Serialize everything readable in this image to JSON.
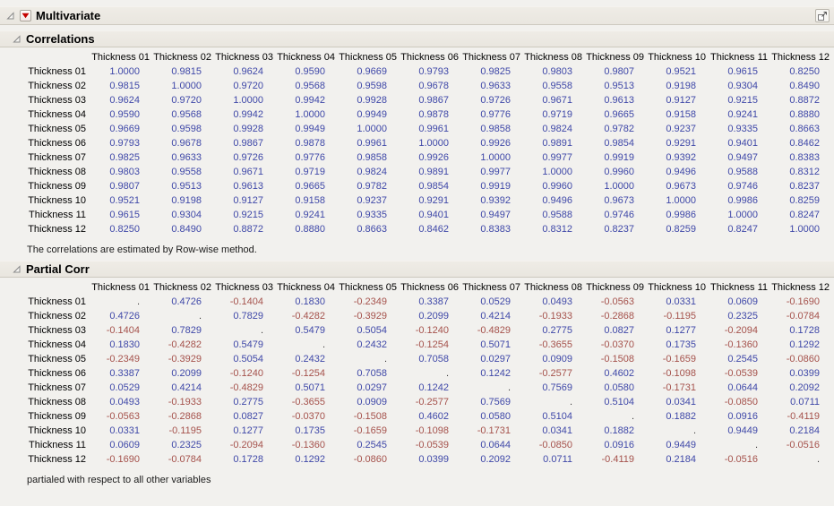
{
  "colors": {
    "positive": "#3f48a8",
    "negative": "#a5524c",
    "missing": "#3a3a3a",
    "red_triangle": "#c40000",
    "bar_bg": "#e9e6df",
    "bar_border": "#cdc9bf",
    "page_bg": "#f2f1ee"
  },
  "multivariate": {
    "title": "Multivariate"
  },
  "correlations": {
    "title": "Correlations",
    "columns": [
      "Thickness 01",
      "Thickness 02",
      "Thickness 03",
      "Thickness 04",
      "Thickness 05",
      "Thickness 06",
      "Thickness 07",
      "Thickness 08",
      "Thickness 09",
      "Thickness 10",
      "Thickness 11",
      "Thickness 12"
    ],
    "row_labels": [
      "Thickness 01",
      "Thickness 02",
      "Thickness 03",
      "Thickness 04",
      "Thickness 05",
      "Thickness 06",
      "Thickness 07",
      "Thickness 08",
      "Thickness 09",
      "Thickness 10",
      "Thickness 11",
      "Thickness 12"
    ],
    "values": [
      [
        "1.0000",
        "0.9815",
        "0.9624",
        "0.9590",
        "0.9669",
        "0.9793",
        "0.9825",
        "0.9803",
        "0.9807",
        "0.9521",
        "0.9615",
        "0.8250"
      ],
      [
        "0.9815",
        "1.0000",
        "0.9720",
        "0.9568",
        "0.9598",
        "0.9678",
        "0.9633",
        "0.9558",
        "0.9513",
        "0.9198",
        "0.9304",
        "0.8490"
      ],
      [
        "0.9624",
        "0.9720",
        "1.0000",
        "0.9942",
        "0.9928",
        "0.9867",
        "0.9726",
        "0.9671",
        "0.9613",
        "0.9127",
        "0.9215",
        "0.8872"
      ],
      [
        "0.9590",
        "0.9568",
        "0.9942",
        "1.0000",
        "0.9949",
        "0.9878",
        "0.9776",
        "0.9719",
        "0.9665",
        "0.9158",
        "0.9241",
        "0.8880"
      ],
      [
        "0.9669",
        "0.9598",
        "0.9928",
        "0.9949",
        "1.0000",
        "0.9961",
        "0.9858",
        "0.9824",
        "0.9782",
        "0.9237",
        "0.9335",
        "0.8663"
      ],
      [
        "0.9793",
        "0.9678",
        "0.9867",
        "0.9878",
        "0.9961",
        "1.0000",
        "0.9926",
        "0.9891",
        "0.9854",
        "0.9291",
        "0.9401",
        "0.8462"
      ],
      [
        "0.9825",
        "0.9633",
        "0.9726",
        "0.9776",
        "0.9858",
        "0.9926",
        "1.0000",
        "0.9977",
        "0.9919",
        "0.9392",
        "0.9497",
        "0.8383"
      ],
      [
        "0.9803",
        "0.9558",
        "0.9671",
        "0.9719",
        "0.9824",
        "0.9891",
        "0.9977",
        "1.0000",
        "0.9960",
        "0.9496",
        "0.9588",
        "0.8312"
      ],
      [
        "0.9807",
        "0.9513",
        "0.9613",
        "0.9665",
        "0.9782",
        "0.9854",
        "0.9919",
        "0.9960",
        "1.0000",
        "0.9673",
        "0.9746",
        "0.8237"
      ],
      [
        "0.9521",
        "0.9198",
        "0.9127",
        "0.9158",
        "0.9237",
        "0.9291",
        "0.9392",
        "0.9496",
        "0.9673",
        "1.0000",
        "0.9986",
        "0.8259"
      ],
      [
        "0.9615",
        "0.9304",
        "0.9215",
        "0.9241",
        "0.9335",
        "0.9401",
        "0.9497",
        "0.9588",
        "0.9746",
        "0.9986",
        "1.0000",
        "0.8247"
      ],
      [
        "0.8250",
        "0.8490",
        "0.8872",
        "0.8880",
        "0.8663",
        "0.8462",
        "0.8383",
        "0.8312",
        "0.8237",
        "0.8259",
        "0.8247",
        "1.0000"
      ]
    ],
    "note": "The correlations are estimated by Row-wise method."
  },
  "partial": {
    "title": "Partial Corr",
    "columns": [
      "Thickness 01",
      "Thickness 02",
      "Thickness 03",
      "Thickness 04",
      "Thickness 05",
      "Thickness 06",
      "Thickness 07",
      "Thickness 08",
      "Thickness 09",
      "Thickness 10",
      "Thickness 11",
      "Thickness 12"
    ],
    "row_labels": [
      "Thickness 01",
      "Thickness 02",
      "Thickness 03",
      "Thickness 04",
      "Thickness 05",
      "Thickness 06",
      "Thickness 07",
      "Thickness 08",
      "Thickness 09",
      "Thickness 10",
      "Thickness 11",
      "Thickness 12"
    ],
    "values": [
      [
        ".",
        "0.4726",
        "-0.1404",
        "0.1830",
        "-0.2349",
        "0.3387",
        "0.0529",
        "0.0493",
        "-0.0563",
        "0.0331",
        "0.0609",
        "-0.1690"
      ],
      [
        "0.4726",
        ".",
        "0.7829",
        "-0.4282",
        "-0.3929",
        "0.2099",
        "0.4214",
        "-0.1933",
        "-0.2868",
        "-0.1195",
        "0.2325",
        "-0.0784"
      ],
      [
        "-0.1404",
        "0.7829",
        ".",
        "0.5479",
        "0.5054",
        "-0.1240",
        "-0.4829",
        "0.2775",
        "0.0827",
        "0.1277",
        "-0.2094",
        "0.1728"
      ],
      [
        "0.1830",
        "-0.4282",
        "0.5479",
        ".",
        "0.2432",
        "-0.1254",
        "0.5071",
        "-0.3655",
        "-0.0370",
        "0.1735",
        "-0.1360",
        "0.1292"
      ],
      [
        "-0.2349",
        "-0.3929",
        "0.5054",
        "0.2432",
        ".",
        "0.7058",
        "0.0297",
        "0.0909",
        "-0.1508",
        "-0.1659",
        "0.2545",
        "-0.0860"
      ],
      [
        "0.3387",
        "0.2099",
        "-0.1240",
        "-0.1254",
        "0.7058",
        ".",
        "0.1242",
        "-0.2577",
        "0.4602",
        "-0.1098",
        "-0.0539",
        "0.0399"
      ],
      [
        "0.0529",
        "0.4214",
        "-0.4829",
        "0.5071",
        "0.0297",
        "0.1242",
        ".",
        "0.7569",
        "0.0580",
        "-0.1731",
        "0.0644",
        "0.2092"
      ],
      [
        "0.0493",
        "-0.1933",
        "0.2775",
        "-0.3655",
        "0.0909",
        "-0.2577",
        "0.7569",
        ".",
        "0.5104",
        "0.0341",
        "-0.0850",
        "0.0711"
      ],
      [
        "-0.0563",
        "-0.2868",
        "0.0827",
        "-0.0370",
        "-0.1508",
        "0.4602",
        "0.0580",
        "0.5104",
        ".",
        "0.1882",
        "0.0916",
        "-0.4119"
      ],
      [
        "0.0331",
        "-0.1195",
        "0.1277",
        "0.1735",
        "-0.1659",
        "-0.1098",
        "-0.1731",
        "0.0341",
        "0.1882",
        ".",
        "0.9449",
        "0.2184"
      ],
      [
        "0.0609",
        "0.2325",
        "-0.2094",
        "-0.1360",
        "0.2545",
        "-0.0539",
        "0.0644",
        "-0.0850",
        "0.0916",
        "0.9449",
        ".",
        "-0.0516"
      ],
      [
        "-0.1690",
        "-0.0784",
        "0.1728",
        "0.1292",
        "-0.0860",
        "0.0399",
        "0.2092",
        "0.0711",
        "-0.4119",
        "0.2184",
        "-0.0516",
        "."
      ]
    ],
    "note": "partialed with respect to all other variables"
  }
}
